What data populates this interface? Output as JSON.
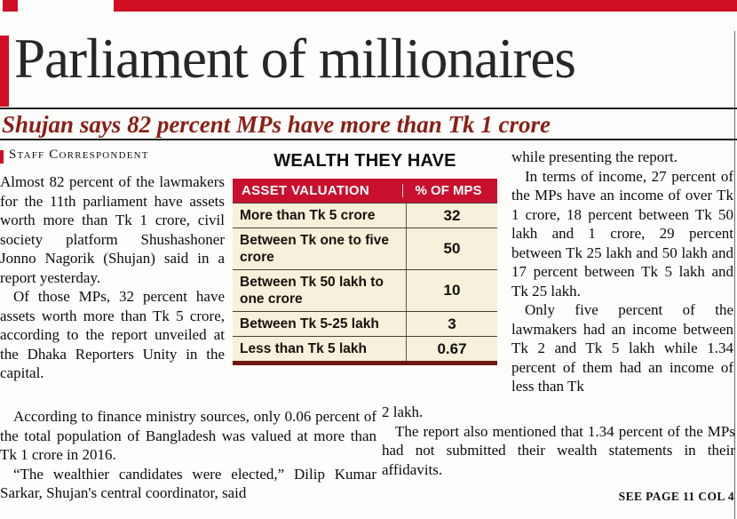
{
  "colors": {
    "accent_red": "#cf0e24",
    "table_header_red": "#c8102e",
    "subhead_maroon": "#8a1f14",
    "table_background": "#f7f0da",
    "table_bottom_border": "#6f1710"
  },
  "headline": "Parliament of millionaires",
  "subhead": "Shujan says 82 percent MPs have more than Tk 1 crore",
  "byline": "Staff Correspondent",
  "left_column": {
    "paragraphs": [
      "Almost 82 percent of the lawmakers for the 11th parliament have assets worth more than Tk 1 crore, civil society platform Shushashoner Jonno Nagorik (Shujan) said in a report yesterday.",
      "Of those MPs, 32 percent have assets worth more than Tk 5 crore, according to the report unveiled at the Dhaka Reporters Unity in the capital."
    ]
  },
  "table": {
    "title": "WEALTH THEY HAVE",
    "col1_header": "ASSET VALUATION",
    "col2_header": "% OF MPS",
    "rows": [
      {
        "label": "More than Tk 5 crore",
        "value": "32"
      },
      {
        "label": "Between Tk one to five crore",
        "value": "50"
      },
      {
        "label": "Between Tk 50 lakh to one crore",
        "value": "10"
      },
      {
        "label": "Between Tk 5-25 lakh",
        "value": "3"
      },
      {
        "label": "Less than Tk 5 lakh",
        "value": "0.67"
      }
    ]
  },
  "right_column": {
    "paragraphs": [
      "while presenting the report.",
      "In terms of income, 27 percent of the MPs have an income of over Tk 1 crore, 18 percent between Tk 50 lakh and 1 crore, 29 percent between Tk 25 lakh and 50 lakh and 17 percent between Tk 5 lakh and Tk 25 lakh.",
      "Only five percent of the lawmakers had an income between Tk 2 and Tk 5 lakh while 1.34 percent of them had an income of less than Tk"
    ]
  },
  "bottom_left": {
    "paragraphs": [
      "According to finance ministry sources, only 0.06 percent of the total population of Bangladesh was valued at more than Tk 1 crore in 2016.",
      "“The wealthier candidates were elected,” Dilip Kumar Sarkar, Shujan's central coordinator, said"
    ]
  },
  "bottom_middle": {
    "paragraphs": [
      "2 lakh.",
      "The report also mentioned that 1.34 percent of the MPs had not submitted their wealth statements in their affidavits."
    ]
  },
  "footer": {
    "see_page": "SEE PAGE 11 COL 4"
  }
}
